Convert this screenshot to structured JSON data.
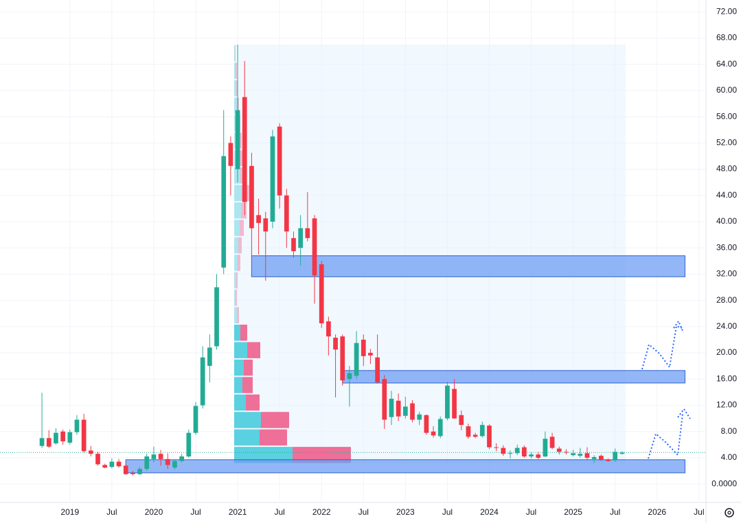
{
  "chart_data": {
    "type": "candlestick",
    "x": [
      "2018-09",
      "2018-10",
      "2018-11",
      "2018-12",
      "2019-01",
      "2019-02",
      "2019-03",
      "2019-04",
      "2019-05",
      "2019-06",
      "2019-07",
      "2019-08",
      "2019-09",
      "2019-10",
      "2019-11",
      "2019-12",
      "2020-01",
      "2020-02",
      "2020-03",
      "2020-04",
      "2020-05",
      "2020-06",
      "2020-07",
      "2020-08",
      "2020-09",
      "2020-10",
      "2020-11",
      "2020-12",
      "2021-01",
      "2021-02",
      "2021-03",
      "2021-04",
      "2021-05",
      "2021-06",
      "2021-07",
      "2021-08",
      "2021-09",
      "2021-10",
      "2021-11",
      "2021-12",
      "2022-01",
      "2022-02",
      "2022-03",
      "2022-04",
      "2022-05",
      "2022-06",
      "2022-07",
      "2022-08",
      "2022-09",
      "2022-10",
      "2022-11",
      "2022-12",
      "2023-01",
      "2023-02",
      "2023-03",
      "2023-04",
      "2023-05",
      "2023-06",
      "2023-07",
      "2023-08",
      "2023-09",
      "2023-10",
      "2023-11",
      "2023-12",
      "2024-01",
      "2024-02",
      "2024-03",
      "2024-04",
      "2024-05",
      "2024-06",
      "2024-07",
      "2024-08",
      "2024-09",
      "2024-10",
      "2024-11",
      "2024-12",
      "2025-01",
      "2025-02",
      "2025-03",
      "2025-04",
      "2025-05",
      "2025-06",
      "2025-07",
      "2025-08"
    ],
    "open": [
      5.8,
      7.0,
      6.2,
      8.0,
      6.3,
      7.9,
      9.8,
      5.1,
      4.6,
      2.9,
      2.6,
      3.4,
      2.8,
      1.7,
      1.5,
      2.3,
      3.8,
      4.6,
      3.8,
      2.5,
      3.5,
      4.2,
      7.8,
      12,
      18,
      21,
      33,
      52,
      48,
      59,
      48.5,
      41,
      40.5,
      40,
      54.5,
      44,
      37.5,
      36,
      39,
      40.5,
      33.5,
      24.8,
      22.3,
      22.5,
      16,
      16.5,
      22,
      20,
      19.3,
      16,
      10.2,
      12.7,
      10.4,
      12.3,
      9.8,
      10.5,
      8,
      7.3,
      10,
      14.5,
      10.5,
      8.8,
      7.5,
      7.3,
      8.9,
      5.6,
      5.5,
      4.6,
      4.7,
      5.6,
      4.2,
      4.5,
      4.2,
      7.2,
      5.4,
      4.9,
      4.4,
      4.3,
      4.7,
      3.8,
      4.3,
      3.7,
      3.6,
      4.6
    ],
    "high": [
      13.9,
      8.2,
      8.5,
      8.3,
      8.3,
      10.5,
      10.7,
      5.8,
      4.9,
      3.1,
      3.9,
      3.8,
      3.1,
      2.0,
      2.6,
      4.6,
      5.7,
      5.2,
      4.7,
      3.8,
      4.6,
      8.3,
      12.5,
      21,
      22.8,
      32,
      57,
      53,
      67,
      64.5,
      50.5,
      43.5,
      41.5,
      54,
      55,
      45,
      38.5,
      41,
      44.5,
      41,
      34,
      25.5,
      22.8,
      22.8,
      18,
      23.3,
      22.8,
      20.6,
      22.8,
      16.6,
      14.2,
      13.8,
      13.3,
      12.8,
      11,
      10.6,
      8.8,
      10.3,
      15.6,
      16,
      11.2,
      9.2,
      7.8,
      9.5,
      9.1,
      6.2,
      5.9,
      5.1,
      6.0,
      5.9,
      4.8,
      4.9,
      8.0,
      7.8,
      5.7,
      5.3,
      5.2,
      5.5,
      5.6,
      4.4,
      4.5,
      3.9,
      5.4,
      5.0
    ],
    "low": [
      5.5,
      5.5,
      6.0,
      6.0,
      6.0,
      7.5,
      4.8,
      4.2,
      2.8,
      2.4,
      2.4,
      2.5,
      1.4,
      1.3,
      1.4,
      2.0,
      3.3,
      2.8,
      2.3,
      2.2,
      3.3,
      4.0,
      7.5,
      11.5,
      15.5,
      20.5,
      32,
      44,
      46,
      41,
      34,
      35,
      31,
      39,
      42,
      36,
      34.5,
      33.3,
      37,
      27.5,
      23.8,
      19.6,
      13.2,
      15,
      11.8,
      16,
      18,
      18.3,
      15.3,
      8.4,
      9,
      9.6,
      10,
      9.4,
      9,
      7.5,
      7.1,
      7.0,
      9.7,
      9.9,
      8.2,
      6.9,
      7,
      7.1,
      5.3,
      5.0,
      4.3,
      3.9,
      4.4,
      4.0,
      3.9,
      3.8,
      4.1,
      5.3,
      4.5,
      4.5,
      4.2,
      4.0,
      3.7,
      3.2,
      3.5,
      3.4,
      3.4,
      4.5
    ],
    "close": [
      7.0,
      5.7,
      7.8,
      6.5,
      7.9,
      9.8,
      5.0,
      4.6,
      3.0,
      2.5,
      3.4,
      2.7,
      1.5,
      1.5,
      2.3,
      4.2,
      4.5,
      3.8,
      2.9,
      3.5,
      4.2,
      7.8,
      11.9,
      19.3,
      20.8,
      30,
      50,
      48.5,
      57,
      43,
      39,
      39.8,
      38.5,
      53,
      44,
      38.5,
      35.5,
      39,
      37.5,
      31.8,
      24.5,
      22.5,
      20.5,
      15.8,
      16.9,
      21.5,
      19.5,
      19.6,
      15.5,
      9.8,
      13,
      10.3,
      11.8,
      9.8,
      10.6,
      7.8,
      7.4,
      9.9,
      15,
      10,
      9,
      7.2,
      7.2,
      9,
      5.6,
      5.5,
      4.6,
      4.7,
      5.5,
      4.2,
      4.5,
      4.0,
      6.9,
      5.5,
      4.9,
      4.8,
      4.7,
      4.6,
      4.0,
      4.1,
      3.7,
      3.5,
      4.9,
      4.8
    ],
    "up_color": "#22ab94",
    "down_color": "#f23645",
    "xlim": [
      "2018-03",
      "2026-08"
    ],
    "xticks": [
      {
        "value": "2019-01",
        "label": "2019"
      },
      {
        "value": "2019-07",
        "label": "Jul"
      },
      {
        "value": "2020-01",
        "label": "2020"
      },
      {
        "value": "2020-07",
        "label": "Jul"
      },
      {
        "value": "2021-01",
        "label": "2021"
      },
      {
        "value": "2021-07",
        "label": "Jul"
      },
      {
        "value": "2022-01",
        "label": "2022"
      },
      {
        "value": "2022-07",
        "label": "Jul"
      },
      {
        "value": "2023-01",
        "label": "2023"
      },
      {
        "value": "2023-07",
        "label": "Jul"
      },
      {
        "value": "2024-01",
        "label": "2024"
      },
      {
        "value": "2024-07",
        "label": "Jul"
      },
      {
        "value": "2025-01",
        "label": "2025"
      },
      {
        "value": "2025-07",
        "label": "Jul"
      },
      {
        "value": "2026-01",
        "label": "2026"
      },
      {
        "value": "2026-07",
        "label": "Jul"
      }
    ],
    "ylim": [
      -2.6,
      73.8
    ],
    "yticks": [
      {
        "value": 0,
        "label": "0.0000"
      },
      {
        "value": 4,
        "label": "4.00"
      },
      {
        "value": 8,
        "label": "8.00"
      },
      {
        "value": 12,
        "label": "12.00"
      },
      {
        "value": 16,
        "label": "16.00"
      },
      {
        "value": 20,
        "label": "20.00"
      },
      {
        "value": 24,
        "label": "24.00"
      },
      {
        "value": 28,
        "label": "28.00"
      },
      {
        "value": 32,
        "label": "32.00"
      },
      {
        "value": 36,
        "label": "36.00"
      },
      {
        "value": 40,
        "label": "40.00"
      },
      {
        "value": 44,
        "label": "44.00"
      },
      {
        "value": 48,
        "label": "48.00"
      },
      {
        "value": 52,
        "label": "52.00"
      },
      {
        "value": 56,
        "label": "56.00"
      },
      {
        "value": 60,
        "label": "60.00"
      },
      {
        "value": 64,
        "label": "64.00"
      },
      {
        "value": 68,
        "label": "68.00"
      },
      {
        "value": 72,
        "label": "72.00"
      }
    ],
    "grid": true,
    "last_price": 4.8,
    "zones": [
      {
        "start": "2021-03",
        "end": "2026-05",
        "low": 31.6,
        "high": 34.8
      },
      {
        "start": "2022-04",
        "end": "2026-05",
        "low": 15.4,
        "high": 17.3
      },
      {
        "start": "2019-09",
        "end": "2026-05",
        "low": 1.7,
        "high": 3.7
      }
    ],
    "zone_color": "#6f9ff3",
    "volume_profile": {
      "start": "2021-01",
      "end": "2025-08",
      "low": 3.1,
      "high": 67,
      "up": [
        85,
        37,
        39,
        17,
        12,
        14,
        19,
        9,
        4,
        2,
        3,
        5,
        6,
        8,
        10,
        10,
        9,
        8,
        6,
        5,
        4,
        3,
        2,
        1
      ],
      "down": [
        85,
        40,
        41,
        20,
        15,
        13,
        19,
        10,
        3,
        2,
        2,
        4,
        5,
        6,
        8,
        12,
        8,
        6,
        5,
        4,
        3,
        2,
        2,
        1
      ],
      "value_area_rows": 8,
      "up_color": "#5ad0e0",
      "down_color": "#ee6f98"
    }
  }
}
